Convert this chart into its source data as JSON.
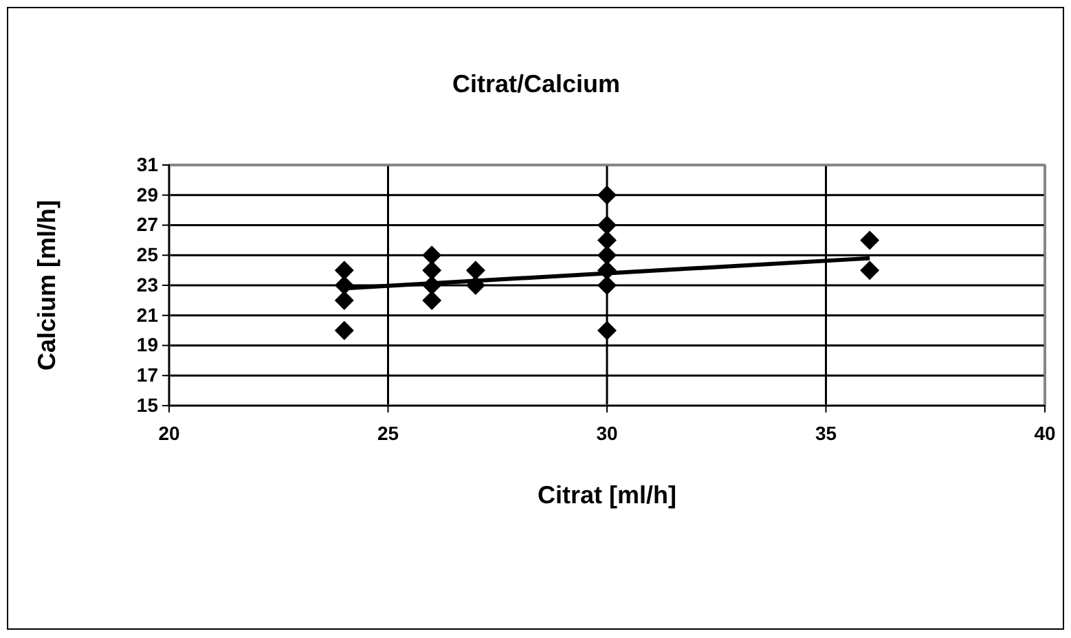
{
  "chart_data": {
    "type": "scatter",
    "title": "Citrat/Calcium",
    "xlabel": "Citrat [ml/h]",
    "ylabel": "Calcium [ml/h]",
    "xlim": [
      20,
      40
    ],
    "xticks": [
      20,
      25,
      30,
      35,
      40
    ],
    "ylim": [
      15,
      31
    ],
    "yticks": [
      15,
      17,
      19,
      21,
      23,
      25,
      27,
      29,
      31
    ],
    "grid": true,
    "series": [
      {
        "color": "#000000",
        "marker": "diamond",
        "x": [
          24,
          24,
          24,
          24,
          26,
          26,
          26,
          26,
          27,
          27,
          30,
          30,
          30,
          30,
          30,
          30,
          30,
          36,
          36
        ],
        "values": [
          24,
          23,
          22,
          20,
          25,
          24,
          23,
          22,
          24,
          23,
          29,
          27,
          26,
          25,
          24,
          23,
          20,
          26,
          24
        ]
      },
      {
        "type": "line",
        "color": "#000000",
        "x": [
          24,
          36
        ],
        "values": [
          22.8,
          24.8
        ]
      }
    ]
  }
}
